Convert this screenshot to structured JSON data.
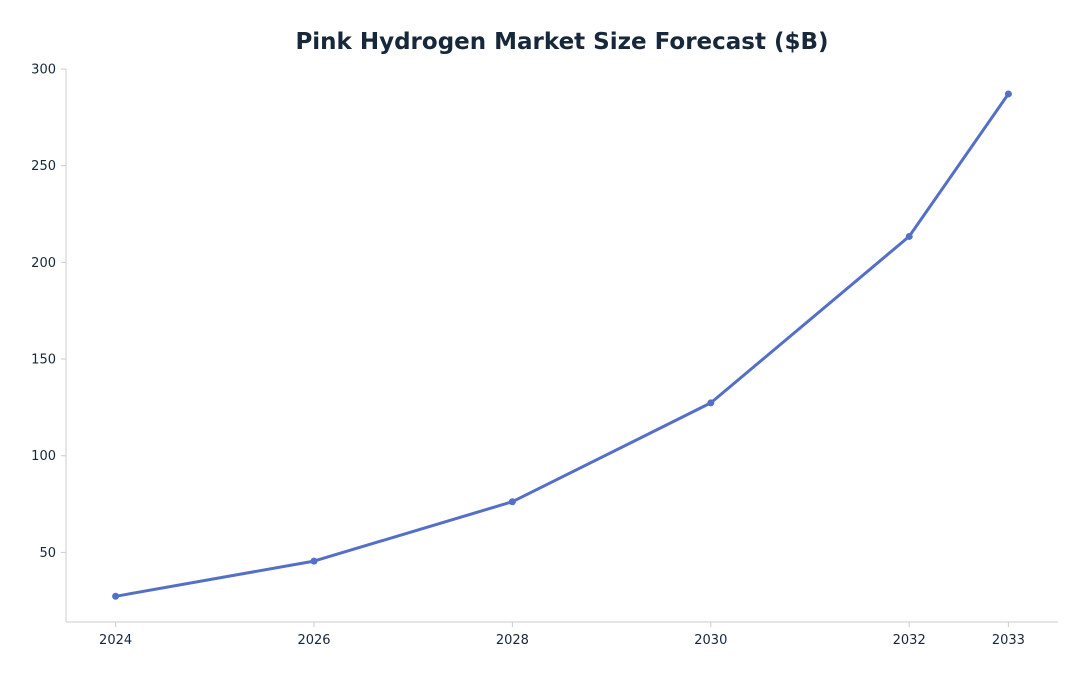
{
  "chart_data": {
    "type": "line",
    "title": "Pink Hydrogen Market Size Forecast ($B)",
    "xlabel": "",
    "ylabel": "",
    "x": [
      2024,
      2026,
      2028,
      2030,
      2032,
      2033
    ],
    "x_tick_labels": [
      "2024",
      "2026",
      "2028",
      "2030",
      "2032",
      "2033"
    ],
    "series": [
      {
        "values": [
          27.3,
          45.5,
          76.2,
          127.3,
          213.4,
          287.1
        ]
      }
    ],
    "y_ticks": [
      50,
      100,
      150,
      200,
      250,
      300
    ],
    "ylim": [
      14,
      300
    ],
    "xlim": [
      2023.5,
      2033.5
    ],
    "grid": false,
    "legend": "none",
    "colors": {
      "line": "#5470c6",
      "text": "#17283a",
      "axis": "#cccccc"
    }
  }
}
